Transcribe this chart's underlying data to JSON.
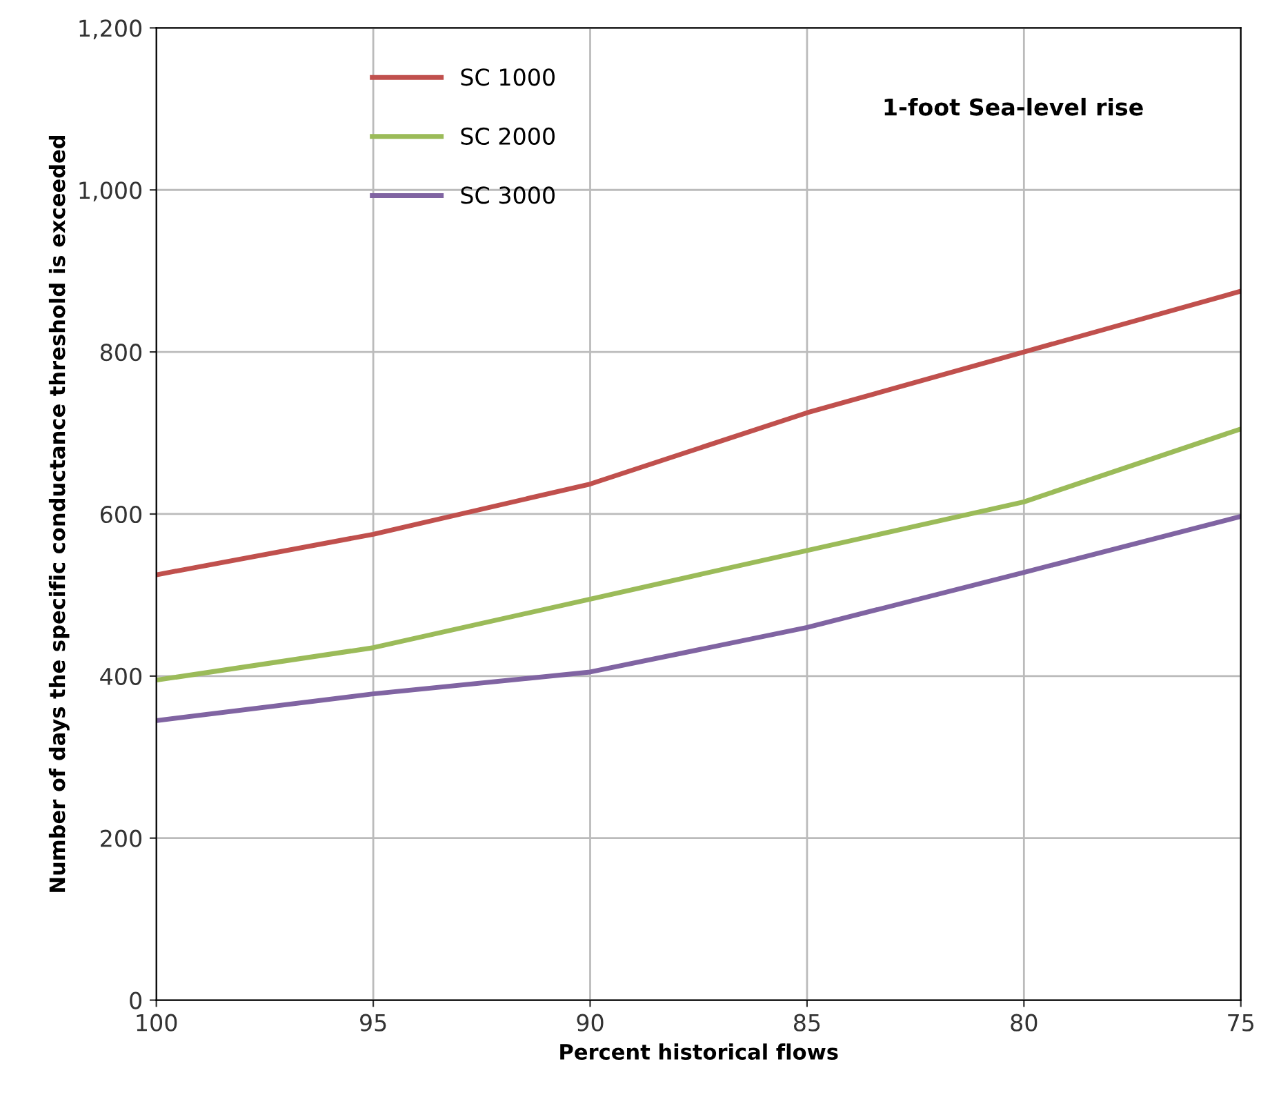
{
  "chart_data": {
    "type": "line",
    "xlabel": "Percent historical flows",
    "ylabel": "Number of days the specific conductance threshold is exceeded",
    "x": [
      100,
      95,
      90,
      85,
      80,
      75
    ],
    "series": [
      {
        "name": "SC 1000",
        "color": "#c0504d",
        "values": [
          525,
          575,
          637,
          725,
          800,
          875
        ]
      },
      {
        "name": "SC 2000",
        "color": "#9bbb59",
        "values": [
          395,
          435,
          495,
          555,
          615,
          705
        ]
      },
      {
        "name": "SC 3000",
        "color": "#8064a2",
        "values": [
          345,
          378,
          405,
          460,
          528,
          597
        ]
      }
    ],
    "xlim": [
      100,
      75
    ],
    "xticks": [
      100,
      95,
      90,
      85,
      80,
      75
    ],
    "ylim": [
      0,
      1200
    ],
    "yticks": [
      0,
      {
        "value": 200,
        "label": "200"
      },
      {
        "value": 400,
        "label": "400"
      },
      {
        "value": 600,
        "label": "600"
      },
      {
        "value": 800,
        "label": "800"
      },
      {
        "value": 1000,
        "label": "1,000"
      },
      {
        "value": 1200,
        "label": "1,200"
      }
    ],
    "grid": true,
    "legend": "top left",
    "marker": "none",
    "line_style": "solid",
    "annotations": [
      "1-foot Sea-level rise"
    ]
  }
}
